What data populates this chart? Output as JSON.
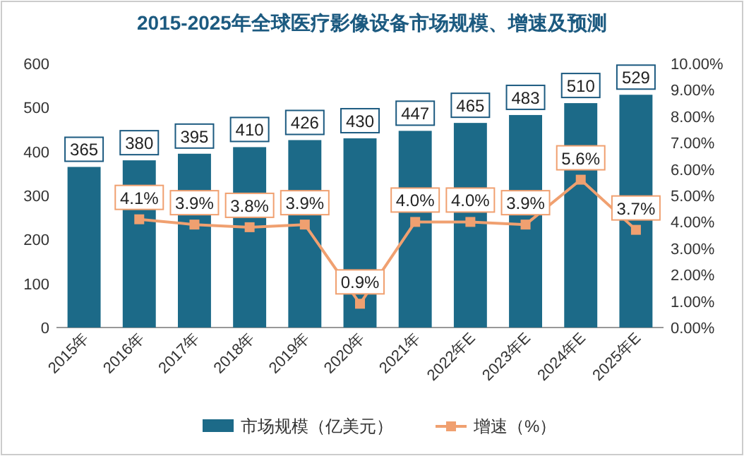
{
  "chart_data": {
    "type": "bar",
    "title": "2015-2025年全球医疗影像设备市场规模、增速及预测",
    "categories": [
      "2015年",
      "2016年",
      "2017年",
      "2018年",
      "2019年",
      "2020年",
      "2021年",
      "2022年E",
      "2023年E",
      "2024年E",
      "2025年E"
    ],
    "series": [
      {
        "name": "市场规模（亿美元）",
        "color": "#1c6a88",
        "values": [
          365,
          380,
          395,
          410,
          426,
          430,
          447,
          465,
          483,
          510,
          529
        ],
        "value_labels": [
          "365",
          "380",
          "395",
          "410",
          "426",
          "430",
          "447",
          "465",
          "483",
          "510",
          "529"
        ]
      },
      {
        "name": "增速（%）",
        "type": "line",
        "axis": "y2",
        "color": "#f0a070",
        "marker": "square",
        "values": [
          null,
          4.1,
          3.9,
          3.8,
          3.9,
          0.9,
          4.0,
          4.0,
          3.9,
          5.6,
          3.7
        ],
        "value_labels": [
          null,
          "4.1%",
          "3.9%",
          "3.8%",
          "3.9%",
          "0.9%",
          "4.0%",
          "4.0%",
          "3.9%",
          "5.6%",
          "3.7%"
        ]
      }
    ],
    "ylim": [
      0,
      600
    ],
    "yticks": [
      0,
      100,
      200,
      300,
      400,
      500,
      600
    ],
    "y2lim": [
      0,
      10
    ],
    "y2ticks": [
      {
        "value": 0,
        "label": "0.00%"
      },
      {
        "value": 1,
        "label": "1.00%"
      },
      {
        "value": 2,
        "label": "2.00%"
      },
      {
        "value": 3,
        "label": "3.00%"
      },
      {
        "value": 4,
        "label": "4.00%"
      },
      {
        "value": 5,
        "label": "5.00%"
      },
      {
        "value": 6,
        "label": "6.00%"
      },
      {
        "value": 7,
        "label": "7.00%"
      },
      {
        "value": 8,
        "label": "8.00%"
      },
      {
        "value": 9,
        "label": "9.00%"
      },
      {
        "value": 10,
        "label": "10.00%"
      }
    ],
    "legend": "bottom",
    "grid": false
  }
}
